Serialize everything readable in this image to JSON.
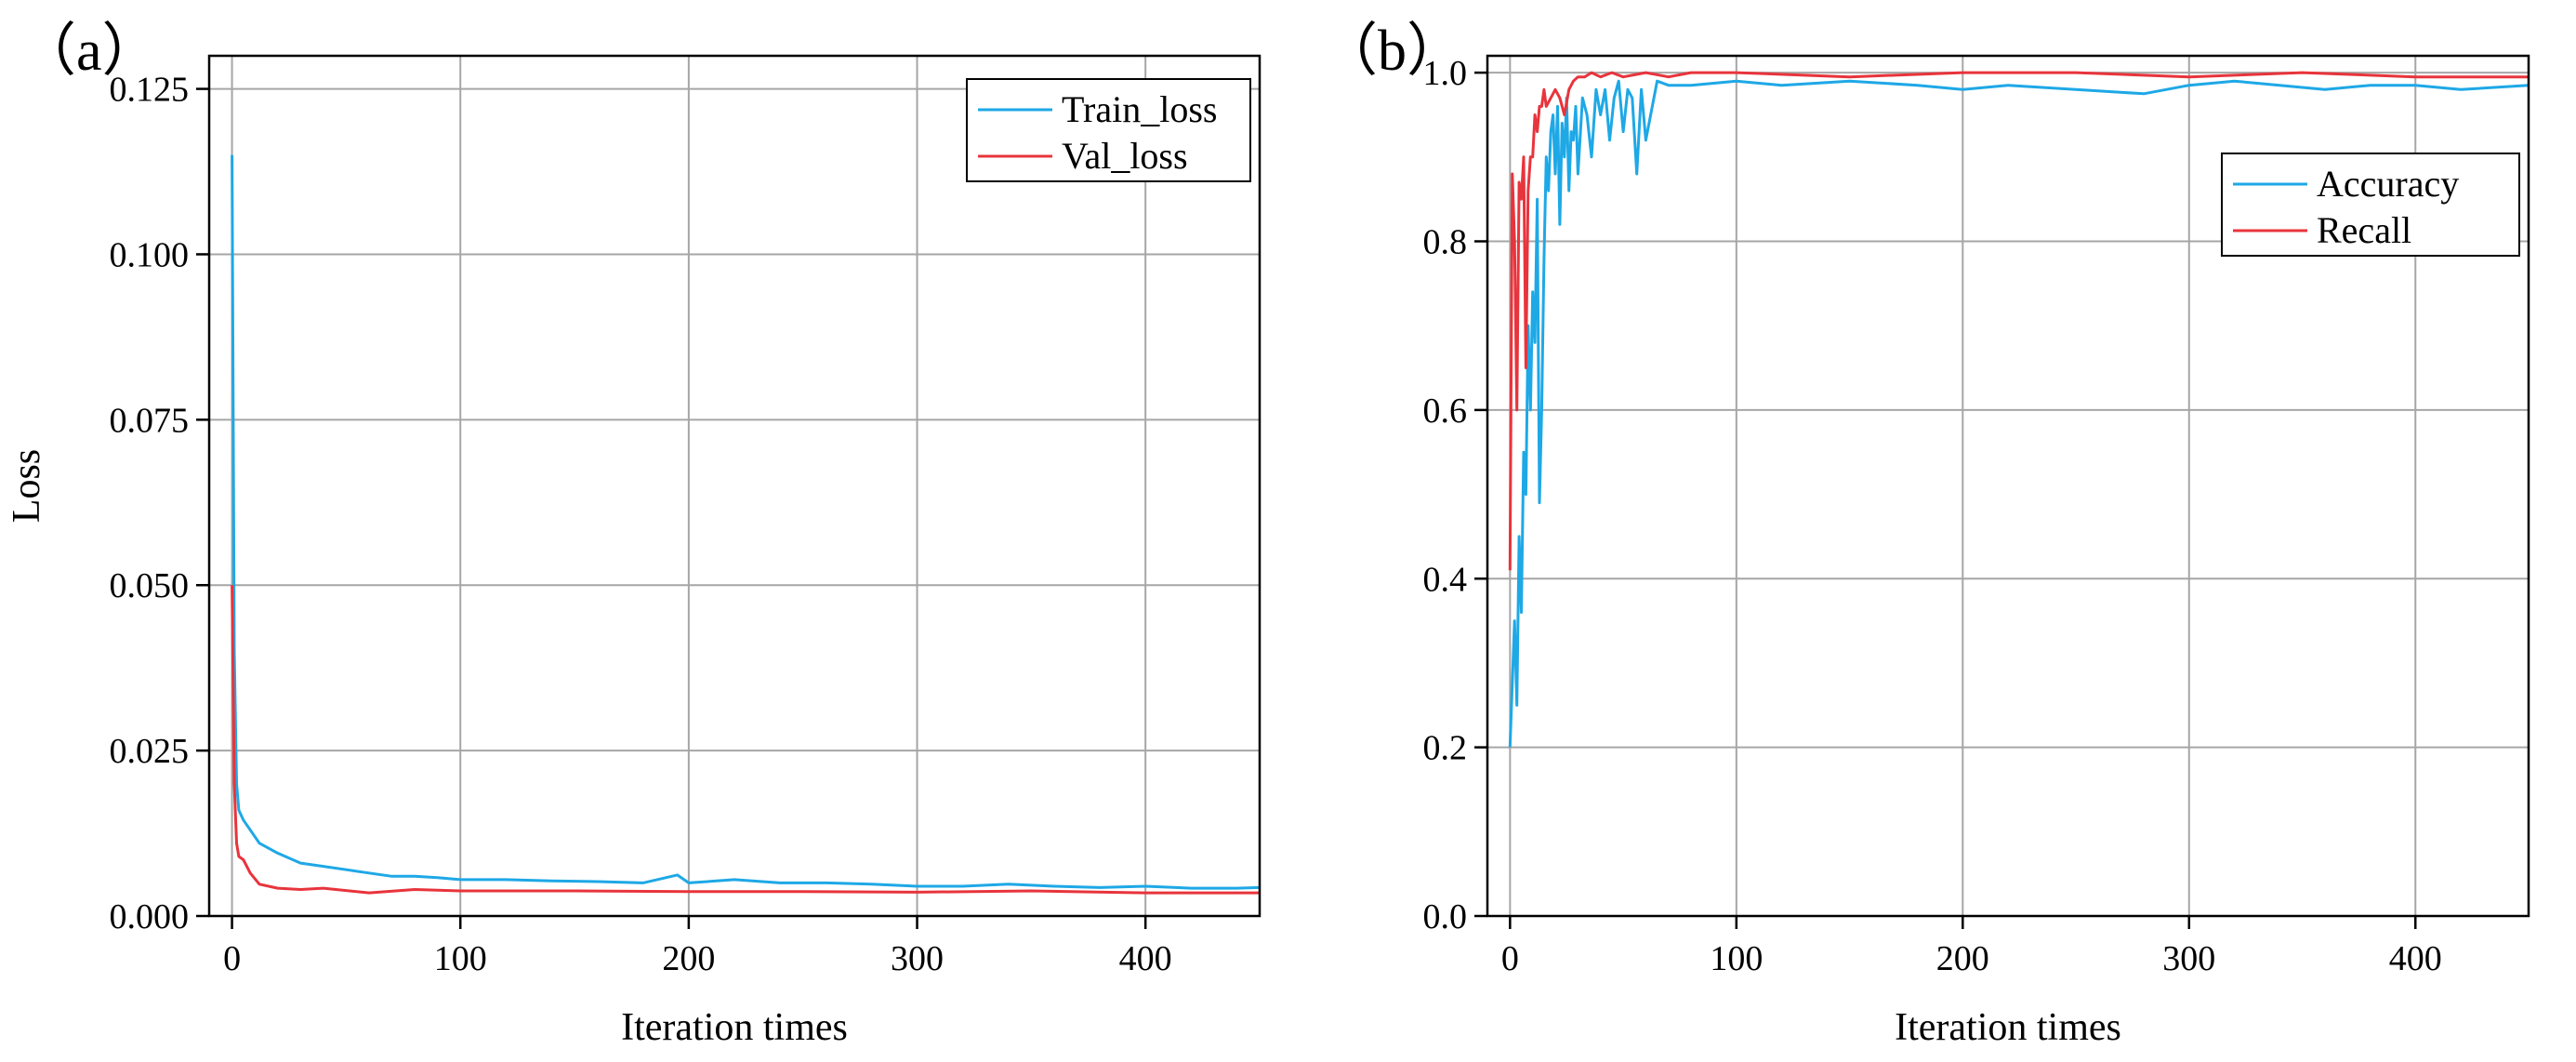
{
  "chart_data": [
    {
      "type": "line",
      "panel_label": "（a）",
      "xlabel": "Iteration times",
      "ylabel": "Loss",
      "xlim": [
        -10,
        450
      ],
      "ylim": [
        0,
        0.13
      ],
      "xticks": [
        0,
        100,
        200,
        300,
        400
      ],
      "xtick_labels": [
        "0",
        "100",
        "200",
        "300",
        "400"
      ],
      "yticks": [
        0,
        0.025,
        0.05,
        0.075,
        0.1,
        0.125
      ],
      "ytick_labels": [
        "0.000",
        "0.025",
        "0.050",
        "0.075",
        "0.100",
        "0.125"
      ],
      "grid": true,
      "legend_position": "top-right",
      "series": [
        {
          "name": "Train_loss",
          "color": "#1ea8e6",
          "x": [
            0,
            1,
            2,
            3,
            5,
            8,
            12,
            20,
            30,
            40,
            50,
            60,
            70,
            80,
            90,
            100,
            120,
            140,
            160,
            180,
            195,
            200,
            220,
            240,
            260,
            280,
            300,
            320,
            340,
            360,
            380,
            400,
            420,
            440,
            450
          ],
          "y": [
            0.115,
            0.04,
            0.02,
            0.016,
            0.0145,
            0.013,
            0.011,
            0.0095,
            0.008,
            0.0075,
            0.007,
            0.0065,
            0.006,
            0.006,
            0.0058,
            0.0055,
            0.0055,
            0.0053,
            0.0052,
            0.005,
            0.0062,
            0.005,
            0.0055,
            0.005,
            0.005,
            0.0048,
            0.0045,
            0.0045,
            0.0048,
            0.0045,
            0.0043,
            0.0045,
            0.0042,
            0.0042,
            0.0043
          ]
        },
        {
          "name": "Val_loss",
          "color": "#e8343c",
          "x": [
            0,
            1,
            2,
            3,
            5,
            8,
            12,
            20,
            30,
            40,
            60,
            80,
            100,
            150,
            200,
            250,
            300,
            350,
            400,
            450
          ],
          "y": [
            0.05,
            0.02,
            0.011,
            0.009,
            0.0085,
            0.0065,
            0.0048,
            0.0042,
            0.004,
            0.0042,
            0.0035,
            0.004,
            0.0038,
            0.0038,
            0.0037,
            0.0037,
            0.0036,
            0.0038,
            0.0035,
            0.0035
          ]
        }
      ]
    },
    {
      "type": "line",
      "panel_label": "（b）",
      "xlabel": "Iteration times",
      "ylabel": "",
      "xlim": [
        -10,
        450
      ],
      "ylim": [
        0,
        1.02
      ],
      "xticks": [
        0,
        100,
        200,
        300,
        400
      ],
      "xtick_labels": [
        "0",
        "100",
        "200",
        "300",
        "400"
      ],
      "yticks": [
        0,
        0.2,
        0.4,
        0.6,
        0.8,
        1.0
      ],
      "ytick_labels": [
        "0.0",
        "0.2",
        "0.4",
        "0.6",
        "0.8",
        "1.0"
      ],
      "grid": true,
      "legend_position": "upper-right",
      "series": [
        {
          "name": "Accuracy",
          "color": "#1ea8e6",
          "x": [
            0,
            2,
            3,
            4,
            5,
            6,
            7,
            8,
            9,
            10,
            11,
            12,
            13,
            14,
            15,
            16,
            17,
            18,
            19,
            20,
            21,
            22,
            23,
            24,
            25,
            26,
            27,
            28,
            29,
            30,
            32,
            34,
            36,
            38,
            40,
            42,
            44,
            46,
            48,
            50,
            52,
            54,
            56,
            58,
            60,
            65,
            70,
            80,
            100,
            120,
            150,
            180,
            200,
            220,
            250,
            280,
            300,
            320,
            340,
            360,
            380,
            400,
            420,
            450
          ],
          "y": [
            0.2,
            0.35,
            0.25,
            0.45,
            0.36,
            0.55,
            0.5,
            0.7,
            0.6,
            0.74,
            0.68,
            0.85,
            0.49,
            0.6,
            0.78,
            0.9,
            0.86,
            0.93,
            0.95,
            0.88,
            0.96,
            0.82,
            0.94,
            0.9,
            0.97,
            0.86,
            0.93,
            0.92,
            0.96,
            0.88,
            0.97,
            0.95,
            0.9,
            0.98,
            0.95,
            0.98,
            0.92,
            0.97,
            0.99,
            0.93,
            0.98,
            0.97,
            0.88,
            0.98,
            0.92,
            0.99,
            0.985,
            0.985,
            0.99,
            0.985,
            0.99,
            0.985,
            0.98,
            0.985,
            0.98,
            0.975,
            0.985,
            0.99,
            0.985,
            0.98,
            0.985,
            0.985,
            0.98,
            0.985
          ]
        },
        {
          "name": "Recall",
          "color": "#e8343c",
          "x": [
            0,
            1,
            2,
            3,
            4,
            5,
            6,
            7,
            8,
            9,
            10,
            11,
            12,
            13,
            14,
            15,
            16,
            18,
            20,
            22,
            24,
            26,
            28,
            30,
            33,
            36,
            40,
            45,
            50,
            60,
            70,
            80,
            100,
            150,
            200,
            250,
            300,
            350,
            400,
            450
          ],
          "y": [
            0.41,
            0.88,
            0.8,
            0.6,
            0.87,
            0.85,
            0.9,
            0.65,
            0.86,
            0.9,
            0.9,
            0.95,
            0.93,
            0.96,
            0.96,
            0.98,
            0.96,
            0.97,
            0.98,
            0.97,
            0.95,
            0.98,
            0.99,
            0.995,
            0.995,
            1.0,
            0.995,
            1.0,
            0.995,
            1.0,
            0.995,
            1.0,
            1.0,
            0.995,
            1.0,
            1.0,
            0.995,
            1.0,
            0.995,
            0.995
          ]
        }
      ]
    }
  ]
}
